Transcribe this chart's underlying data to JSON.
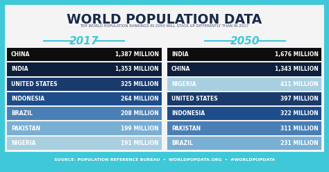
{
  "title": "WORLD POPULATION DATA",
  "subtitle": "TOP WORLD POPULATION RANKINGS IN 2050 WILL STACK UP DIFFERENTLY THAN IN 2017",
  "year_2017": "2017",
  "year_2050": "2050",
  "data_2017": [
    {
      "country": "CHINA",
      "value": "1,387 MILLION",
      "color": "#0d0d0d"
    },
    {
      "country": "INDIA",
      "value": "1,353 MILLION",
      "color": "#0d1f3c"
    },
    {
      "country": "UNITED STATES",
      "value": "325 MILLION",
      "color": "#1a3a6b"
    },
    {
      "country": "INDONESIA",
      "value": "264 MILLION",
      "color": "#1e4d8c"
    },
    {
      "country": "BRAZIL",
      "value": "208 MILLION",
      "color": "#4a7fb5"
    },
    {
      "country": "PAKISTAN",
      "value": "199 MILLION",
      "color": "#7aafd4"
    },
    {
      "country": "NIGERIA",
      "value": "191 MILLION",
      "color": "#a8cfe0"
    }
  ],
  "data_2050": [
    {
      "country": "INDIA",
      "value": "1,676 MILLION",
      "color": "#0d0d0d"
    },
    {
      "country": "CHINA",
      "value": "1,343 MILLION",
      "color": "#0d1f3c"
    },
    {
      "country": "NIGERIA",
      "value": "411 MILLION",
      "color": "#a8cfe0"
    },
    {
      "country": "UNITED STATES",
      "value": "397 MILLION",
      "color": "#1a3a6b"
    },
    {
      "country": "INDONESIA",
      "value": "322 MILLION",
      "color": "#1e4d8c"
    },
    {
      "country": "PAKISTAN",
      "value": "311 MILLION",
      "color": "#4a7fb5"
    },
    {
      "country": "BRAZIL",
      "value": "231 MILLION",
      "color": "#7aafd4"
    }
  ],
  "footer": "SOURCE: POPULATION REFERENCE BUREAU  •  WORLDPOPDATA.ORG  •  #WORLDPOPDATA",
  "bg_color": "#3ec8d8",
  "inner_bg": "#f4f4f4",
  "accent_color": "#3ec8d8",
  "title_color": "#1a2a4a",
  "year_color": "#3ec8d8",
  "footer_bg": "#3ec8d8",
  "footer_color": "#ffffff"
}
